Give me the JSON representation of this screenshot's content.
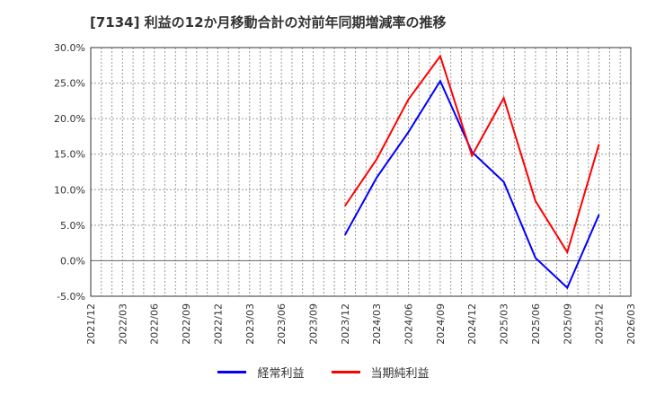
{
  "title": "[7134]  利益の12か月移動合計の対前年同期増減率の推移",
  "chart_data": {
    "type": "line",
    "title": "[7134]  利益の12か月移動合計の対前年同期増減率の推移",
    "xlabel": "",
    "ylabel": "",
    "ylim": [
      -5.0,
      30.0
    ],
    "yticks": [
      "-5.0%",
      "0.0%",
      "5.0%",
      "10.0%",
      "15.0%",
      "20.0%",
      "25.0%",
      "30.0%"
    ],
    "ytick_values": [
      -5,
      0,
      5,
      10,
      15,
      20,
      25,
      30
    ],
    "categories": [
      "2021/12",
      "2022/03",
      "2022/06",
      "2022/09",
      "2022/12",
      "2023/03",
      "2023/06",
      "2023/09",
      "2023/12",
      "2024/03",
      "2024/06",
      "2024/09",
      "2024/12",
      "2025/03",
      "2025/06",
      "2025/09",
      "2025/12",
      "2026/03"
    ],
    "grid": true,
    "legend_position": "bottom",
    "series": [
      {
        "name": "経常利益",
        "color": "#0000ff",
        "values": [
          null,
          null,
          null,
          null,
          null,
          null,
          null,
          null,
          3.6,
          11.7,
          18.1,
          25.3,
          15.3,
          11.1,
          0.4,
          -3.8,
          6.5,
          null
        ]
      },
      {
        "name": "当期純利益",
        "color": "#ff0000",
        "values": [
          null,
          null,
          null,
          null,
          null,
          null,
          null,
          null,
          7.7,
          14.3,
          22.7,
          28.8,
          14.8,
          22.9,
          8.4,
          1.2,
          16.4,
          null
        ]
      }
    ]
  },
  "legend": [
    {
      "label": "経常利益",
      "color": "#0000ff"
    },
    {
      "label": "当期純利益",
      "color": "#ff0000"
    }
  ]
}
